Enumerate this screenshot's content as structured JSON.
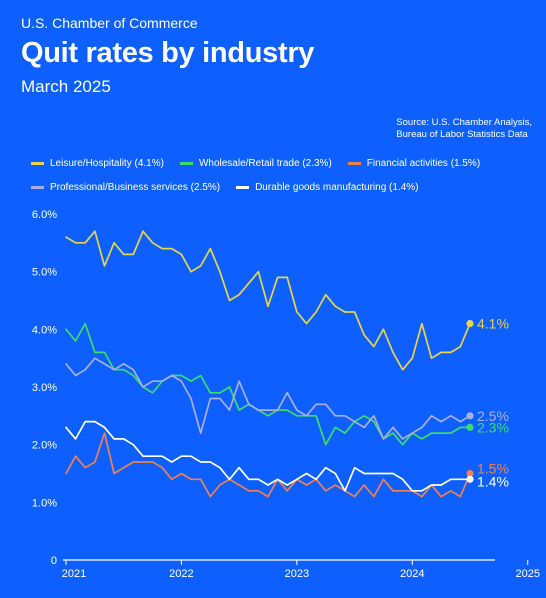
{
  "header": {
    "brand": "U.S. Chamber of Commerce",
    "title": "Quit rates by industry",
    "subtitle": "March 2025",
    "source_line1": "Source: U.S. Chamber Analysis,",
    "source_line2": "Bureau of Labor Statistics Data"
  },
  "colors": {
    "background": "#0d60ff",
    "axis": "#ffffff"
  },
  "chart_data": {
    "type": "line",
    "title": "Quit rates by industry",
    "subtitle": "March 2025",
    "xlabel": "",
    "ylabel": "",
    "x_start": "2021-01",
    "x_frequency": "monthly",
    "xticks": [
      "2021",
      "2022",
      "2023",
      "2024",
      "2025"
    ],
    "yticks": [
      "0",
      "1.0%",
      "2.0%",
      "3.0%",
      "4.0%",
      "5.0%",
      "6.0%"
    ],
    "ylim": [
      0,
      6.0
    ],
    "grid": false,
    "legend_position": "top",
    "series": [
      {
        "name": "Leisure/Hospitality (4.1%)",
        "color": "#e8d54a",
        "end_label": "4.1%",
        "values": [
          5.6,
          5.5,
          5.5,
          5.7,
          5.1,
          5.5,
          5.3,
          5.3,
          5.7,
          5.5,
          5.4,
          5.4,
          5.3,
          5.0,
          5.1,
          5.4,
          5.0,
          4.5,
          4.6,
          4.8,
          5.0,
          4.4,
          4.9,
          4.9,
          4.3,
          4.1,
          4.3,
          4.6,
          4.4,
          4.3,
          4.3,
          3.9,
          3.7,
          4.0,
          3.6,
          3.3,
          3.5,
          4.1,
          3.5,
          3.6,
          3.6,
          3.7,
          4.1
        ]
      },
      {
        "name": "Wholesale/Retail trade (2.3%)",
        "color": "#3ddc6a",
        "end_label": "2.3%",
        "values": [
          4.0,
          3.8,
          4.1,
          3.6,
          3.6,
          3.3,
          3.3,
          3.2,
          3.0,
          2.9,
          3.1,
          3.2,
          3.2,
          3.1,
          3.2,
          2.9,
          2.9,
          3.0,
          2.6,
          2.7,
          2.6,
          2.5,
          2.6,
          2.6,
          2.5,
          2.5,
          2.5,
          2.0,
          2.3,
          2.2,
          2.4,
          2.5,
          2.4,
          2.1,
          2.2,
          2.0,
          2.2,
          2.1,
          2.2,
          2.2,
          2.2,
          2.3,
          2.3
        ]
      },
      {
        "name": "Financial activities (1.5%)",
        "color": "#f0804e",
        "end_label": "1.5%",
        "values": [
          1.5,
          1.8,
          1.6,
          1.7,
          2.2,
          1.5,
          1.6,
          1.7,
          1.7,
          1.7,
          1.6,
          1.4,
          1.5,
          1.4,
          1.4,
          1.1,
          1.3,
          1.4,
          1.3,
          1.2,
          1.2,
          1.1,
          1.4,
          1.2,
          1.4,
          1.3,
          1.4,
          1.2,
          1.3,
          1.2,
          1.1,
          1.3,
          1.1,
          1.4,
          1.2,
          1.2,
          1.2,
          1.1,
          1.3,
          1.1,
          1.2,
          1.1,
          1.5
        ]
      },
      {
        "name": "Professional/Business services (2.5%)",
        "color": "#a9aee0",
        "end_label": "2.5%",
        "values": [
          3.4,
          3.2,
          3.3,
          3.5,
          3.4,
          3.3,
          3.4,
          3.3,
          3.0,
          3.1,
          3.1,
          3.2,
          3.1,
          2.8,
          2.2,
          2.8,
          2.8,
          2.6,
          3.1,
          2.7,
          2.6,
          2.6,
          2.6,
          2.9,
          2.6,
          2.5,
          2.7,
          2.7,
          2.5,
          2.5,
          2.4,
          2.3,
          2.5,
          2.1,
          2.3,
          2.1,
          2.2,
          2.3,
          2.5,
          2.4,
          2.5,
          2.4,
          2.5
        ]
      },
      {
        "name": "Durable goods manufacturing (1.4%)",
        "color": "#ffffff",
        "end_label": "1.4%",
        "values": [
          2.3,
          2.1,
          2.4,
          2.4,
          2.3,
          2.1,
          2.1,
          2.0,
          1.8,
          1.8,
          1.8,
          1.7,
          1.8,
          1.8,
          1.7,
          1.7,
          1.6,
          1.4,
          1.6,
          1.4,
          1.4,
          1.3,
          1.4,
          1.3,
          1.4,
          1.5,
          1.4,
          1.6,
          1.5,
          1.2,
          1.6,
          1.5,
          1.5,
          1.5,
          1.5,
          1.4,
          1.2,
          1.2,
          1.3,
          1.3,
          1.4,
          1.4,
          1.4
        ]
      }
    ]
  }
}
